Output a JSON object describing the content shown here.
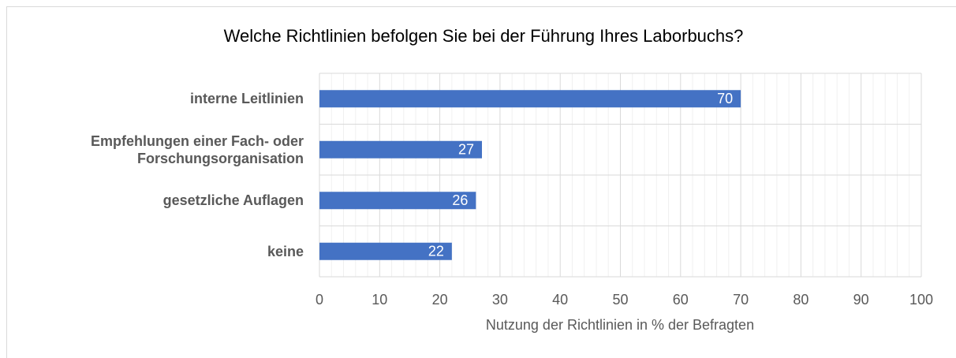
{
  "chart_data": {
    "type": "bar",
    "orientation": "horizontal",
    "title": "Welche Richtlinien befolgen Sie bei der Führung Ihres Laborbuchs?",
    "categories": [
      "interne Leitlinien",
      "Empfehlungen einer Fach- oder Forschungsorganisation",
      "gesetzliche Auflagen",
      "keine"
    ],
    "values": [
      70,
      27,
      26,
      22
    ],
    "color": "#4472c4",
    "xlabel": "Nutzung der Richtlinien in % der Befragten",
    "xlim": [
      0,
      100
    ],
    "xticks": [
      0,
      10,
      20,
      30,
      40,
      50,
      60,
      70,
      80,
      90,
      100
    ],
    "xminorticks": [
      2,
      4,
      6,
      8,
      12,
      14,
      16,
      18,
      22,
      24,
      26,
      28,
      32,
      34,
      36,
      38,
      42,
      44,
      46,
      48,
      52,
      54,
      56,
      58,
      62,
      64,
      66,
      68,
      72,
      74,
      76,
      78,
      82,
      84,
      86,
      88,
      92,
      94,
      96,
      98
    ],
    "grid": true
  }
}
